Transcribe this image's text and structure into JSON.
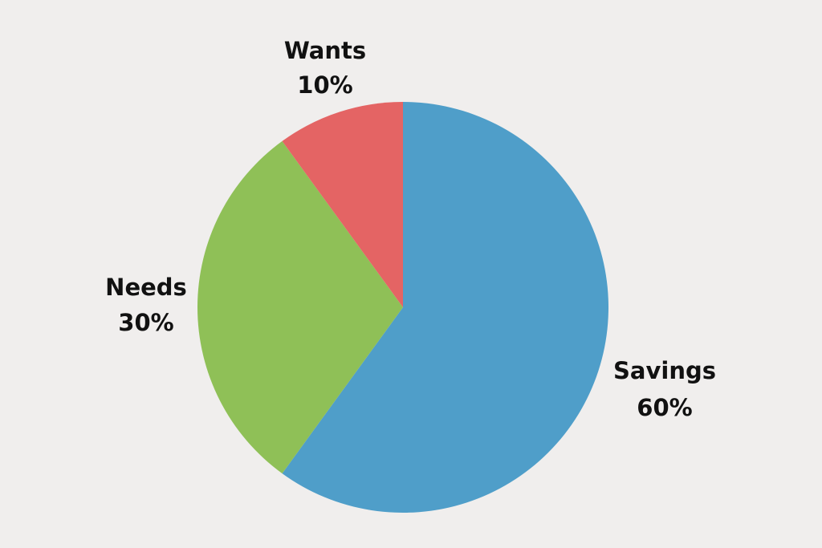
{
  "chart_data": {
    "type": "pie",
    "title": "",
    "start_angle_deg": 0,
    "direction": "clockwise",
    "background_color": "#f0eeed",
    "slices": [
      {
        "label": "Savings",
        "percent_label": "60%",
        "value": 60,
        "color": "#4f9ec9"
      },
      {
        "label": "Needs",
        "percent_label": "30%",
        "value": 30,
        "color": "#8fc057"
      },
      {
        "label": "Wants",
        "percent_label": "10%",
        "value": 10,
        "color": "#e46464"
      }
    ]
  }
}
